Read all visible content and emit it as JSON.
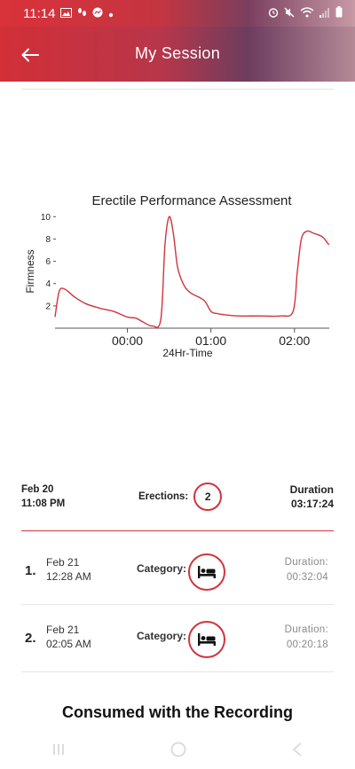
{
  "status_bar": {
    "time": "11:14",
    "left_icons": [
      "image-icon",
      "footsteps-icon",
      "messenger-icon",
      "dot-icon"
    ],
    "right_icons": [
      "alarm-icon",
      "mute-icon",
      "wifi-icon",
      "signal-icon",
      "battery-icon"
    ]
  },
  "header": {
    "title": "My Session",
    "back_icon": "arrow-left-icon"
  },
  "chart_data": {
    "type": "line",
    "title": "Erectile Performance Assessment",
    "xlabel": "24Hr-Time",
    "ylabel": "Firmness",
    "x_ticks": [
      "00:00",
      "01:00",
      "02:00"
    ],
    "y_ticks": [
      2,
      4,
      6,
      8,
      10
    ],
    "ylim": [
      0,
      10.5
    ],
    "grid": false,
    "line_color": "#d3333b",
    "series": [
      {
        "x": [
          "23:08",
          "23:11",
          "23:15",
          "23:22",
          "23:30",
          "23:40",
          "23:50",
          "00:00",
          "00:06",
          "00:12",
          "00:18",
          "00:24",
          "00:27",
          "00:30",
          "00:33",
          "00:36",
          "00:40",
          "00:45",
          "00:55",
          "01:00",
          "01:05",
          "01:10",
          "01:20",
          "01:35",
          "01:50",
          "01:59",
          "02:02",
          "02:05",
          "02:09",
          "02:14",
          "02:20",
          "02:24",
          "02:25"
        ],
        "y": [
          1.0,
          3.3,
          3.5,
          2.8,
          2.2,
          1.8,
          1.5,
          1.0,
          0.9,
          0.5,
          0.2,
          0.8,
          7.5,
          10.0,
          8.5,
          5.5,
          4.0,
          3.2,
          2.5,
          1.5,
          1.3,
          1.2,
          1.1,
          1.1,
          1.1,
          1.5,
          5.0,
          8.0,
          8.7,
          8.5,
          8.2,
          7.6,
          7.5
        ]
      }
    ]
  },
  "summary": {
    "date": "Feb 20",
    "time": "11:08 PM",
    "erections_label": "Erections:",
    "erections_count": "2",
    "duration_label": "Duration",
    "duration_value": "03:17:24"
  },
  "erections": [
    {
      "num": "1.",
      "date": "Feb 21",
      "time": "12:28 AM",
      "category_label": "Category:",
      "category_icon": "bed-icon",
      "duration_label": "Duration:",
      "duration_value": "00:32:04"
    },
    {
      "num": "2.",
      "date": "Feb 21",
      "time": "02:05 AM",
      "category_label": "Category:",
      "category_icon": "bed-icon",
      "duration_label": "Duration:",
      "duration_value": "00:20:18"
    }
  ],
  "consumed_heading": "Consumed with the Recording",
  "colors": {
    "accent": "#d3333b",
    "header_start": "#d22f37",
    "header_end": "#b48a97"
  }
}
